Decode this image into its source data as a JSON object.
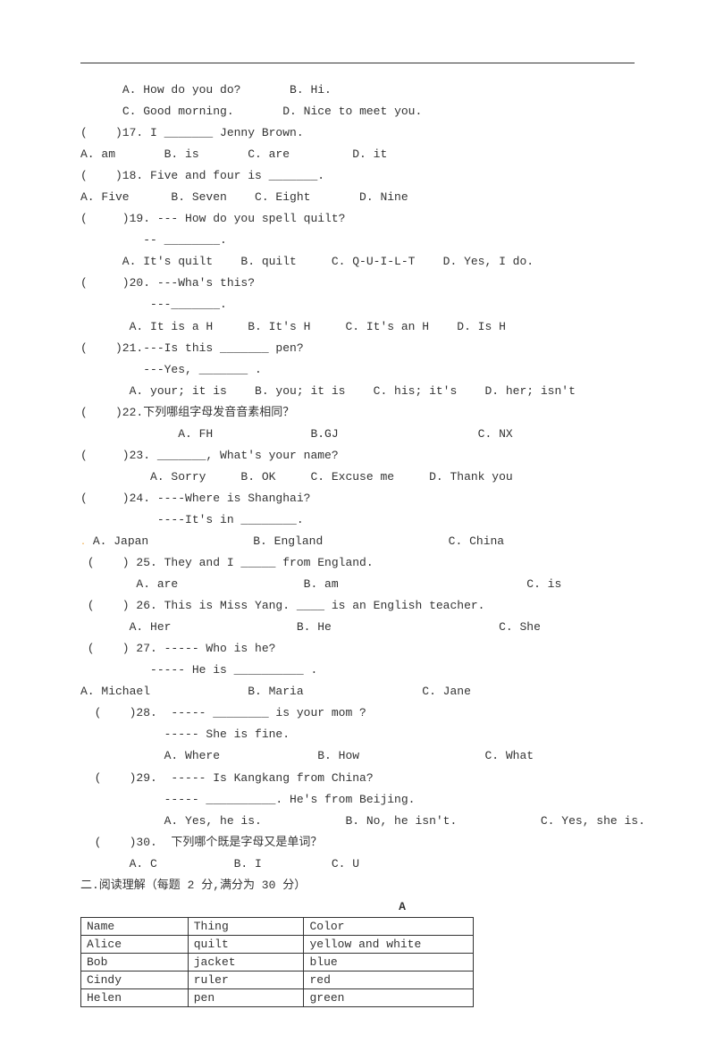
{
  "q16": {
    "optA": "A. How do you do?",
    "optB": "B. Hi.",
    "optC": "C. Good morning.",
    "optD": "D. Nice to meet you."
  },
  "q17": {
    "stem": "(    )17. I _______ Jenny Brown.",
    "opts": "A. am       B. is       C. are         D. it"
  },
  "q18": {
    "stem": "(    )18. Five and four is _______.",
    "opts": "A. Five      B. Seven    C. Eight       D. Nine"
  },
  "q19": {
    "stem": "(     )19. --- How do you spell quilt?",
    "stem2": "         -- ________.",
    "opts": "      A. It's quilt    B. quilt     C. Q-U-I-L-T    D. Yes, I do."
  },
  "q20": {
    "stem": "(     )20. ---Wha's this?",
    "stem2": "          ---_______.",
    "opts": "       A. It is a H     B. It's H     C. It's an H    D. Is H"
  },
  "q21": {
    "stem": "(    )21.---Is this _______ pen?",
    "stem2": "         ---Yes, _______ .",
    "opts": "       A. your; it is    B. you; it is    C. his; it's    D. her; isn't"
  },
  "q22": {
    "stem": "(    )22.下列哪组字母发音音素相同？",
    "opts": "              A. FH              B.GJ                    C. NX"
  },
  "q23": {
    "stem": "(     )23. _______, What's your name?",
    "opts": "          A. Sorry     B. OK     C. Excuse me     D. Thank you"
  },
  "q24": {
    "stem": "(     )24. ----Where is Shanghai?",
    "stem2": "           ----It's in ________.",
    "opts": " A. Japan               B. England                  C. China"
  },
  "q25": {
    "stem": " (    ) 25. They and I _____ from England.",
    "opts": "        A. are                  B. am                           C. is"
  },
  "q26": {
    "stem": " (    ) 26. This is Miss Yang. ____ is an English teacher.",
    "opts": "       A. Her                  B. He                        C. She"
  },
  "q27": {
    "stem": " (    ) 27. ----- Who is he?",
    "stem2": "          ----- He is __________ .",
    "opts": "A. Michael              B. Maria                 C. Jane"
  },
  "q28": {
    "stem": "  (    )28.  ----- ________ is your mom ?",
    "stem2": "            ----- She is fine.",
    "opts": "            A. Where              B. How                  C. What"
  },
  "q29": {
    "stem": "  (    )29.  ----- Is Kangkang from China?",
    "stem2": "            ----- __________. He's from Beijing.",
    "opts": "            A. Yes, he is.            B. No, he isn't.            C. Yes, she is."
  },
  "q30": {
    "stem": "  (    )30.  下列哪个既是字母又是单词？",
    "opts": "       A. C           B. I          C. U"
  },
  "section2": "二.阅读理解（每题 2 分,满分为 30 分）",
  "tableLabel": "A",
  "table": {
    "headers": [
      "Name",
      "Thing",
      "Color"
    ],
    "rows": [
      [
        "Alice",
        "quilt",
        "yellow and white"
      ],
      [
        "Bob",
        "jacket",
        "blue"
      ],
      [
        "Cindy",
        "ruler",
        "red"
      ],
      [
        "Helen",
        "pen",
        "green"
      ]
    ]
  }
}
